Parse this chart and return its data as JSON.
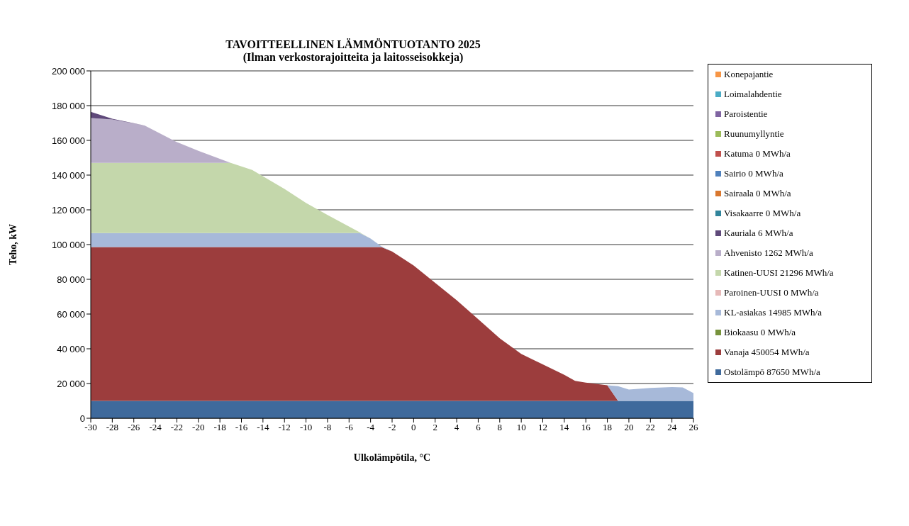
{
  "chart_data": {
    "type": "area",
    "title": "TAVOITTEELLINEN LÄMMÖNTUOTANTO 2025",
    "subtitle": "(Ilman verkostorajoitteita ja laitosseisokkeja)",
    "xlabel": "Ulkolämpötila, °C",
    "ylabel": "Teho, kW",
    "stacked": true,
    "grid": "y",
    "legend": "right",
    "x": [
      -30,
      -28,
      -25,
      -22,
      -20,
      -17,
      -15,
      -12,
      -10,
      -8,
      -5,
      -4,
      -3,
      -2,
      0,
      2,
      4,
      6,
      8,
      10,
      12,
      14,
      15,
      16,
      18,
      19,
      20,
      22,
      24,
      25,
      26
    ],
    "xlim": [
      -30,
      26
    ],
    "xticks": [
      -30,
      -28,
      -26,
      -24,
      -22,
      -20,
      -18,
      -16,
      -14,
      -12,
      -10,
      -8,
      -6,
      -4,
      -2,
      0,
      2,
      4,
      6,
      8,
      10,
      12,
      14,
      16,
      18,
      20,
      22,
      24,
      26
    ],
    "ylim": [
      0,
      200000
    ],
    "yticks": [
      {
        "value": 0,
        "label": "0"
      },
      {
        "value": 20000,
        "label": "20 000"
      },
      {
        "value": 40000,
        "label": "40 000"
      },
      {
        "value": 60000,
        "label": "60 000"
      },
      {
        "value": 80000,
        "label": "80 000"
      },
      {
        "value": 100000,
        "label": "100 000"
      },
      {
        "value": 120000,
        "label": "120 000"
      },
      {
        "value": 140000,
        "label": "140 000"
      },
      {
        "value": 160000,
        "label": "160 000"
      },
      {
        "value": 180000,
        "label": "180 000"
      },
      {
        "value": 200000,
        "label": "200 000"
      }
    ],
    "series": [
      {
        "name": "Ostolämpö 87650 MWh/a",
        "color": "#3f6a9c",
        "values": [
          10000,
          10000,
          10000,
          10000,
          10000,
          10000,
          10000,
          10000,
          10000,
          10000,
          10000,
          10000,
          10000,
          10000,
          10000,
          10000,
          10000,
          10000,
          10000,
          10000,
          10000,
          10000,
          10000,
          10000,
          10000,
          10000,
          10000,
          10000,
          10000,
          10000,
          10000
        ]
      },
      {
        "name": "Vanaja 450054 MWh/a",
        "color": "#9c3d3d",
        "values": [
          88600,
          88600,
          88600,
          88600,
          88600,
          88600,
          88600,
          88600,
          88600,
          88600,
          88600,
          88600,
          88600,
          86000,
          78000,
          68000,
          58000,
          47000,
          36000,
          27000,
          21000,
          15000,
          11500,
          10500,
          9000,
          0,
          0,
          0,
          0,
          0,
          0
        ]
      },
      {
        "name": "Biokaasu 0 MWh/a",
        "color": "#77933c",
        "values": [
          null,
          null,
          null,
          null,
          null,
          null,
          null,
          null,
          null,
          null,
          null,
          null,
          null,
          null,
          null,
          null,
          null,
          null,
          null,
          null,
          null,
          null,
          null,
          null,
          null,
          null,
          null,
          null,
          null,
          null,
          null
        ]
      },
      {
        "name": "KL-asiakas 14985 MWh/a",
        "color": "#a7b9d9",
        "values": [
          8000,
          8000,
          8000,
          8000,
          8000,
          8000,
          8000,
          8000,
          8000,
          8000,
          8000,
          4900,
          400,
          0,
          0,
          0,
          0,
          0,
          0,
          0,
          0,
          0,
          0,
          0,
          0,
          8500,
          6500,
          7500,
          8000,
          7800,
          4500
        ]
      },
      {
        "name": "Paroinen-UUSI 0 MWh/a",
        "color": "#e6b9b8",
        "values": [
          null,
          null,
          null,
          null,
          null,
          null,
          null,
          null,
          null,
          null,
          null,
          null,
          null,
          null,
          null,
          null,
          null,
          null,
          null,
          null,
          null,
          null,
          null,
          null,
          null,
          null,
          null,
          null,
          null,
          null,
          null
        ]
      },
      {
        "name": "Katinen-UUSI 21296 MWh/a",
        "color": "#c4d7ab",
        "values": [
          40400,
          40400,
          40400,
          40400,
          40400,
          40400,
          36400,
          25400,
          17400,
          10400,
          400,
          0,
          0,
          0,
          0,
          0,
          0,
          0,
          0,
          0,
          0,
          0,
          0,
          0,
          0,
          0,
          0,
          0,
          0,
          0,
          0
        ]
      },
      {
        "name": "Ahvenisto 1262 MWh/a",
        "color": "#b9aec9",
        "values": [
          25900,
          25000,
          21600,
          12000,
          7000,
          0,
          0,
          0,
          0,
          0,
          0,
          0,
          0,
          0,
          0,
          0,
          0,
          0,
          0,
          0,
          0,
          0,
          0,
          0,
          0,
          0,
          0,
          0,
          0,
          0,
          0
        ]
      },
      {
        "name": "Kauriala 6 MWh/a",
        "color": "#5f497a",
        "values": [
          3500,
          500,
          0,
          0,
          0,
          0,
          0,
          0,
          0,
          0,
          0,
          0,
          0,
          0,
          0,
          0,
          0,
          0,
          0,
          0,
          0,
          0,
          0,
          0,
          0,
          0,
          0,
          0,
          0,
          0,
          0
        ]
      },
      {
        "name": "Visakaarre 0 MWh/a",
        "color": "#31859c",
        "values": [
          null,
          null,
          null,
          null,
          null,
          null,
          null,
          null,
          null,
          null,
          null,
          null,
          null,
          null,
          null,
          null,
          null,
          null,
          null,
          null,
          null,
          null,
          null,
          null,
          null,
          null,
          null,
          null,
          null,
          null,
          null
        ]
      },
      {
        "name": "Sairaala 0 MWh/a",
        "color": "#d9772e",
        "values": [
          null,
          null,
          null,
          null,
          null,
          null,
          null,
          null,
          null,
          null,
          null,
          null,
          null,
          null,
          null,
          null,
          null,
          null,
          null,
          null,
          null,
          null,
          null,
          null,
          null,
          null,
          null,
          null,
          null,
          null,
          null
        ]
      },
      {
        "name": "Sairio 0 MWh/a",
        "color": "#4f81bd",
        "values": [
          null,
          null,
          null,
          null,
          null,
          null,
          null,
          null,
          null,
          null,
          null,
          null,
          null,
          null,
          null,
          null,
          null,
          null,
          null,
          null,
          null,
          null,
          null,
          null,
          null,
          null,
          null,
          null,
          null,
          null,
          null
        ]
      },
      {
        "name": "Katuma 0 MWh/a",
        "color": "#c0504d",
        "values": [
          null,
          null,
          null,
          null,
          null,
          null,
          null,
          null,
          null,
          null,
          null,
          null,
          null,
          null,
          null,
          null,
          null,
          null,
          null,
          null,
          null,
          null,
          null,
          null,
          null,
          null,
          null,
          null,
          null,
          null,
          null
        ]
      },
      {
        "name": "Ruunumyllyntie",
        "color": "#9bbb59",
        "values": [
          null,
          null,
          null,
          null,
          null,
          null,
          null,
          null,
          null,
          null,
          null,
          null,
          null,
          null,
          null,
          null,
          null,
          null,
          null,
          null,
          null,
          null,
          null,
          null,
          null,
          null,
          null,
          null,
          null,
          null,
          null
        ]
      },
      {
        "name": "Paroistentie",
        "color": "#8064a2",
        "values": [
          null,
          null,
          null,
          null,
          null,
          null,
          null,
          null,
          null,
          null,
          null,
          null,
          null,
          null,
          null,
          null,
          null,
          null,
          null,
          null,
          null,
          null,
          null,
          null,
          null,
          null,
          null,
          null,
          null,
          null,
          null
        ]
      },
      {
        "name": "Loimalahdentie",
        "color": "#4bacc6",
        "values": [
          null,
          null,
          null,
          null,
          null,
          null,
          null,
          null,
          null,
          null,
          null,
          null,
          null,
          null,
          null,
          null,
          null,
          null,
          null,
          null,
          null,
          null,
          null,
          null,
          null,
          null,
          null,
          null,
          null,
          null,
          null
        ]
      },
      {
        "name": "Konepajantie",
        "color": "#f79646",
        "values": [
          null,
          null,
          null,
          null,
          null,
          null,
          null,
          null,
          null,
          null,
          null,
          null,
          null,
          null,
          null,
          null,
          null,
          null,
          null,
          null,
          null,
          null,
          null,
          null,
          null,
          null,
          null,
          null,
          null,
          null,
          null
        ]
      }
    ]
  }
}
